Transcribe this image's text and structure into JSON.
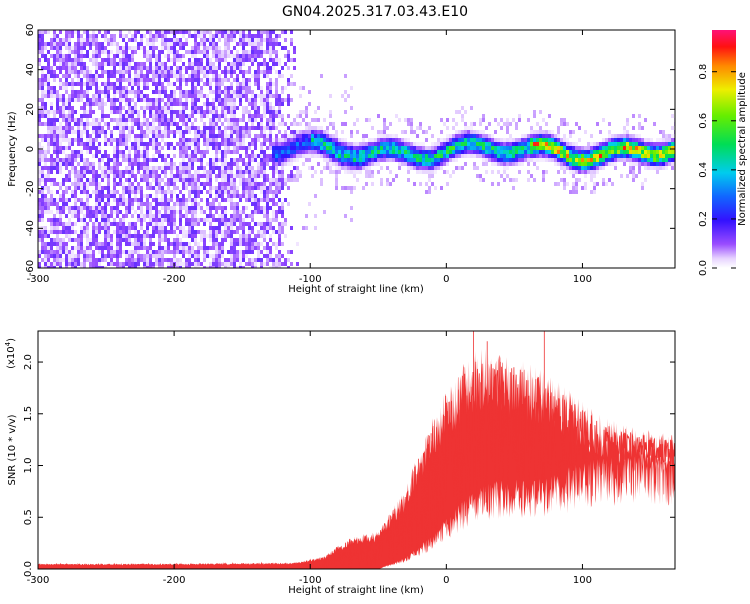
{
  "title": "GN04.2025.317.03.43.E10",
  "chart_data": [
    {
      "type": "heatmap",
      "xlabel": "Height of straight line (km)",
      "ylabel": "Frequency (Hz)",
      "xlim": [
        -300,
        168
      ],
      "ylim": [
        -60,
        60
      ],
      "xticks": [
        -300,
        -200,
        -100,
        0,
        100
      ],
      "yticks": [
        -60,
        -40,
        -20,
        0,
        20,
        40,
        60
      ],
      "colorbar": {
        "label": "Normalized spectral amplitude",
        "range": [
          0,
          0.97
        ],
        "ticks": [
          "0.0",
          "0.2",
          "0.4",
          "0.6",
          "0.8"
        ],
        "tick_values": [
          0,
          0.2,
          0.4,
          0.6,
          0.8
        ]
      },
      "features": [
        {
          "description": "broadband noise",
          "x_range": [
            -300,
            -110
          ],
          "freq_range": [
            -60,
            60
          ],
          "amplitude": 0.1
        },
        {
          "description": "signal band",
          "x_range": [
            -130,
            168
          ],
          "center_freq": 0,
          "peak_amplitude": 0.95
        }
      ]
    },
    {
      "type": "line",
      "xlabel": "Height of straight line (km)",
      "ylabel": "SNR (10 * v/v)",
      "yscale_label": "(x10",
      "yscale_exp": "4",
      "xlim": [
        -300,
        168
      ],
      "ylim": [
        0,
        2.3
      ],
      "xticks": [
        -300,
        -200,
        -100,
        0,
        100
      ],
      "yticks": [
        "0.0",
        "0.5",
        "1.0",
        "1.5",
        "2.0"
      ],
      "ytick_values": [
        0,
        0.5,
        1.0,
        1.5,
        2.0
      ],
      "color": "#ee3333",
      "envelope": {
        "x": [
          -300,
          -200,
          -110,
          -90,
          -70,
          -50,
          -40,
          -30,
          -20,
          -10,
          0,
          10,
          20,
          30,
          40,
          50,
          60,
          70,
          80,
          90,
          100,
          110,
          120,
          130,
          140,
          150,
          168
        ],
        "upper": [
          0.05,
          0.05,
          0.06,
          0.12,
          0.3,
          0.35,
          0.55,
          0.75,
          1.1,
          1.4,
          1.65,
          1.85,
          2.0,
          2.05,
          2.0,
          1.95,
          1.9,
          1.85,
          1.75,
          1.65,
          1.55,
          1.45,
          1.38,
          1.35,
          1.3,
          1.28,
          1.25
        ],
        "lower": [
          0.0,
          0.0,
          0.0,
          0.0,
          0.0,
          0.0,
          0.05,
          0.1,
          0.2,
          0.3,
          0.45,
          0.6,
          0.7,
          0.75,
          0.8,
          0.8,
          0.8,
          0.82,
          0.85,
          0.9,
          0.95,
          0.98,
          1.0,
          1.0,
          1.02,
          1.02,
          1.0
        ]
      },
      "spikes": [
        {
          "x": 20,
          "y": 2.3
        },
        {
          "x": 72,
          "y": 2.3
        },
        {
          "x": 30,
          "y": 2.2
        }
      ]
    }
  ]
}
